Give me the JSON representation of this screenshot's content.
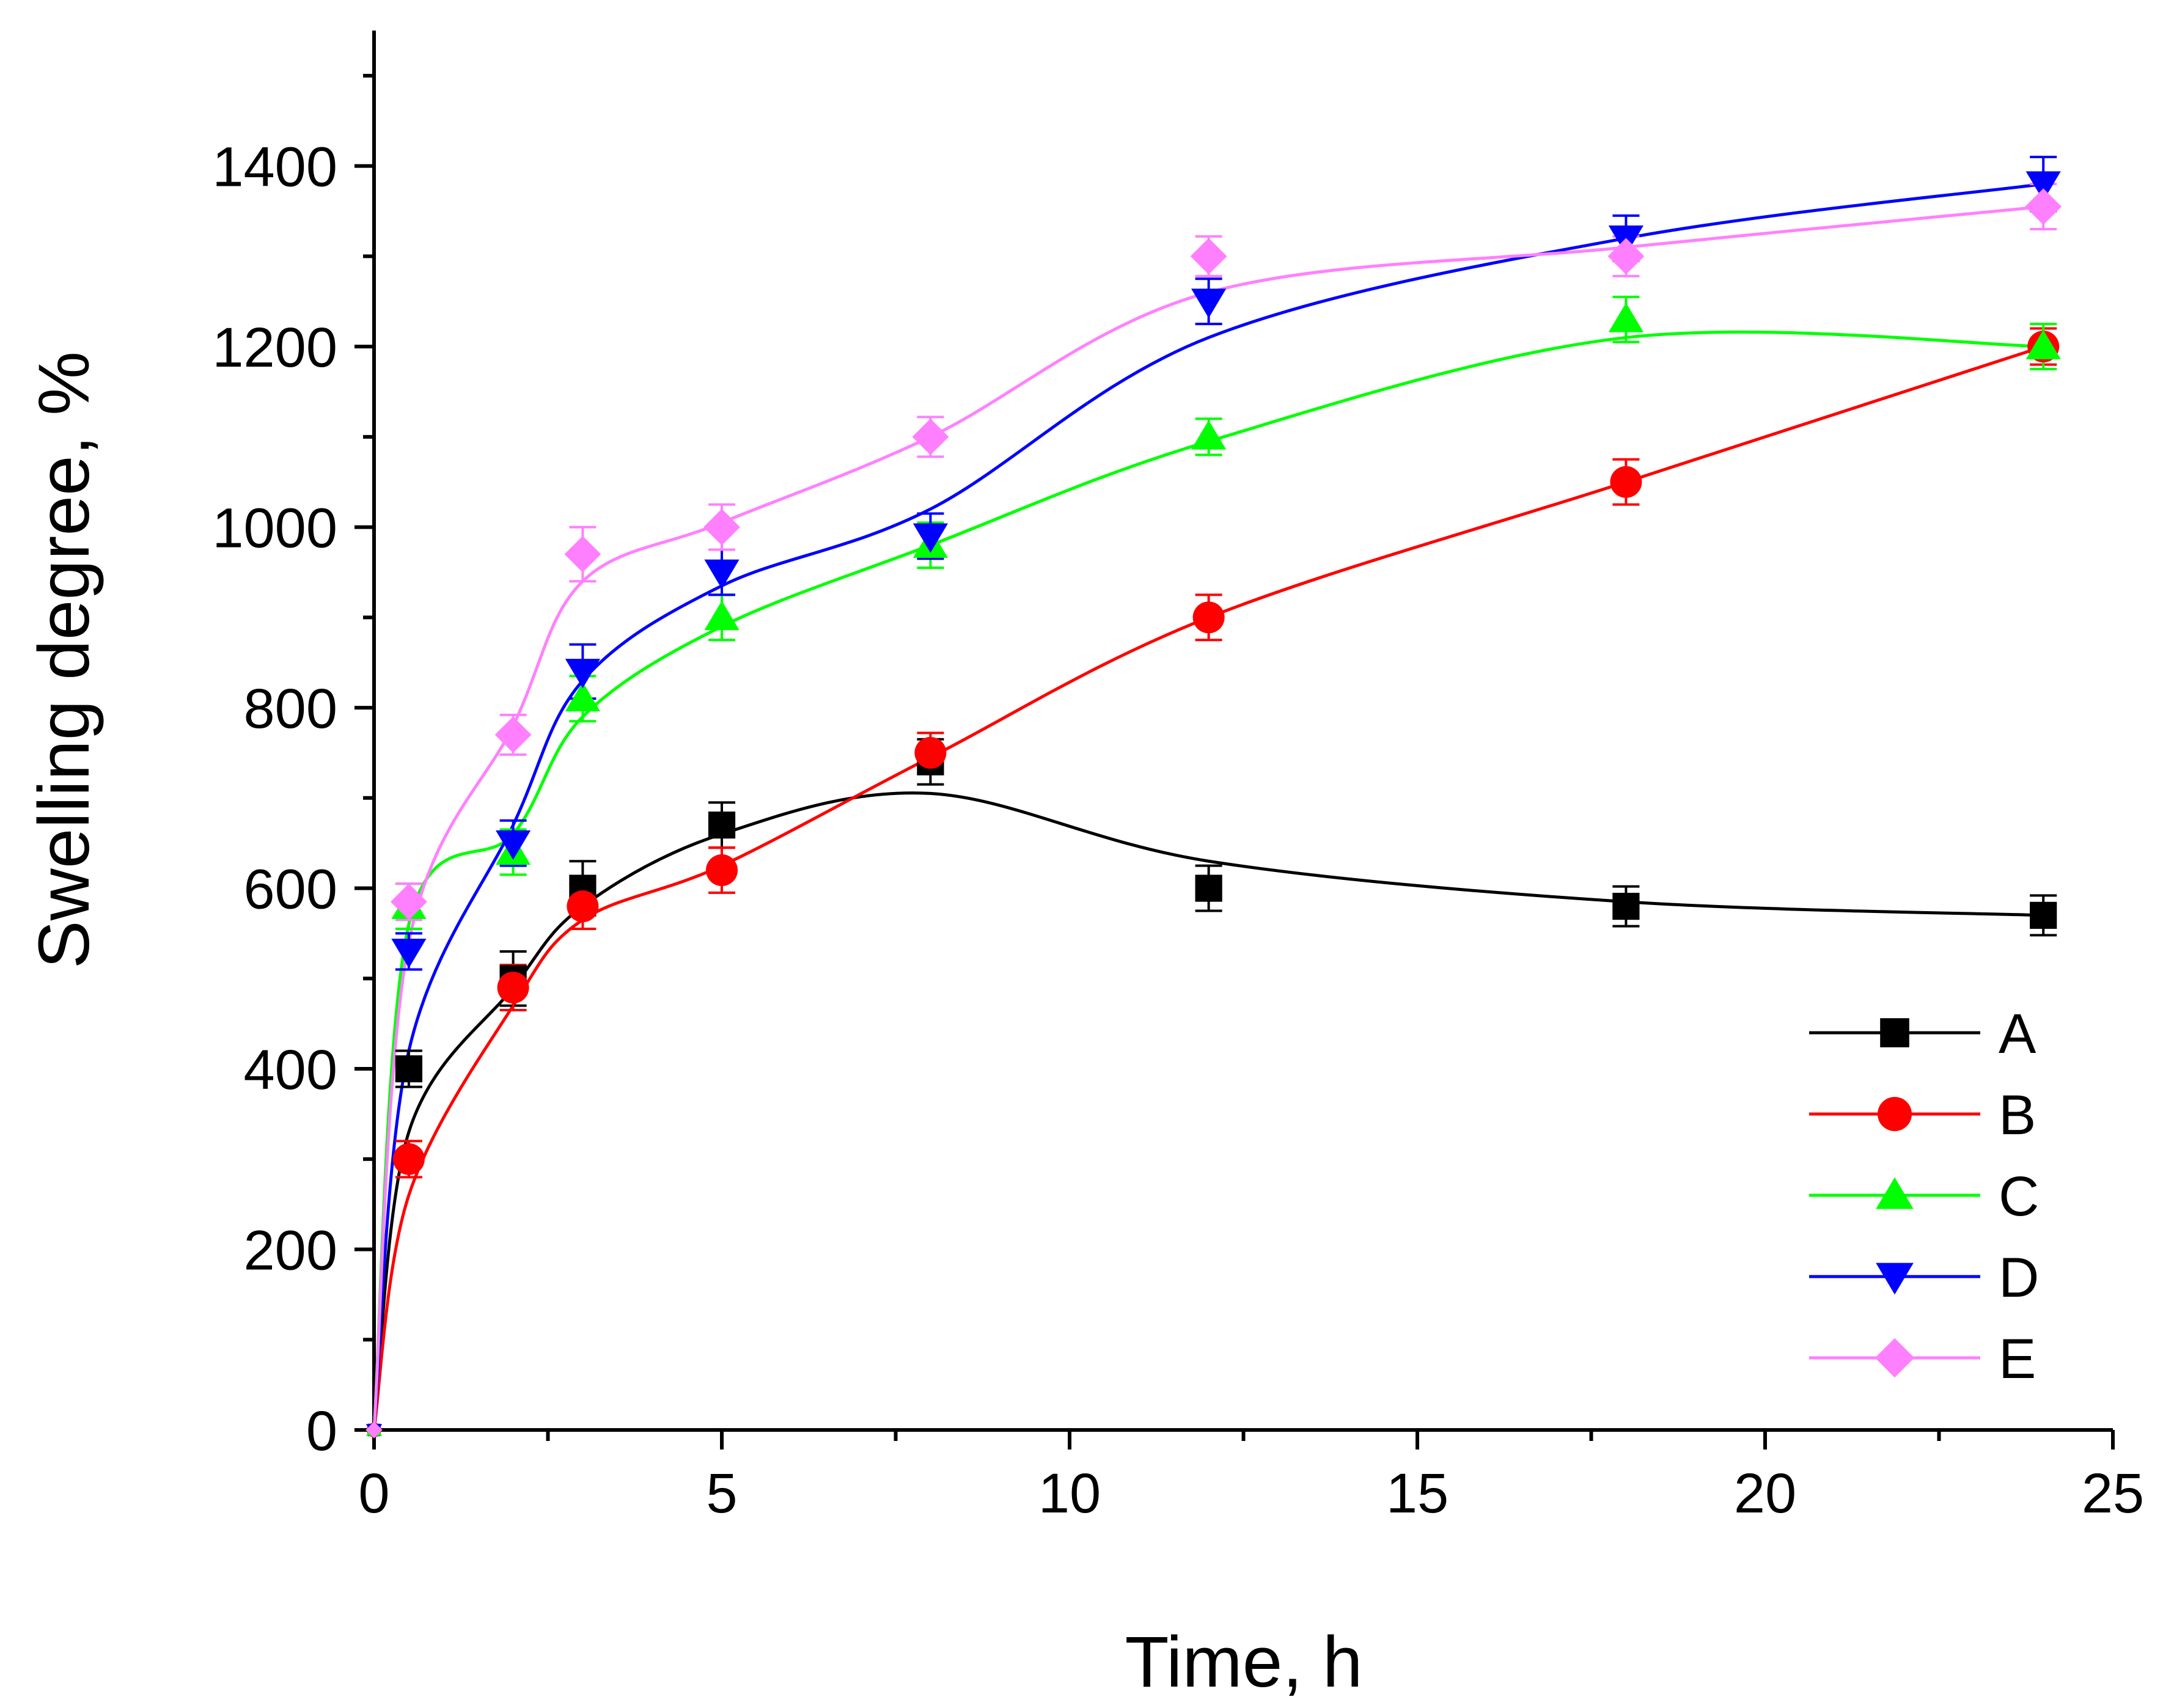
{
  "chart_data": {
    "type": "line",
    "title": "",
    "xlabel": "Time, h",
    "ylabel": "Swelling degree, %",
    "xlim": [
      0,
      25
    ],
    "ylim": [
      0,
      1550
    ],
    "xticks": [
      0,
      5,
      10,
      15,
      20,
      25
    ],
    "yticks": [
      0,
      200,
      400,
      600,
      800,
      1000,
      1200,
      1400
    ],
    "grid": false,
    "legend_position": "bottom-right",
    "x": [
      0,
      0.5,
      2,
      3,
      5,
      8,
      12,
      18,
      24
    ],
    "series": [
      {
        "name": "A",
        "color": "#000000",
        "marker": "square",
        "values": [
          0,
          400,
          500,
          600,
          670,
          740,
          600,
          580,
          570
        ],
        "errors": [
          0,
          20,
          30,
          30,
          25,
          25,
          25,
          22,
          22
        ],
        "curve": [
          0,
          330,
          490,
          580,
          660,
          705,
          630,
          585,
          570
        ]
      },
      {
        "name": "B",
        "color": "#ff0000",
        "marker": "circle",
        "values": [
          0,
          300,
          490,
          580,
          620,
          750,
          900,
          1050,
          1200
        ],
        "errors": [
          0,
          20,
          25,
          25,
          25,
          22,
          25,
          25,
          20
        ],
        "curve": [
          0,
          260,
          470,
          565,
          625,
          745,
          900,
          1050,
          1200
        ]
      },
      {
        "name": "C",
        "color": "#00ff00",
        "marker": "triangle-up",
        "values": [
          0,
          580,
          640,
          810,
          900,
          980,
          1100,
          1230,
          1200
        ],
        "errors": [
          0,
          25,
          25,
          25,
          25,
          25,
          20,
          25,
          25
        ],
        "curve": [
          0,
          560,
          660,
          790,
          890,
          980,
          1095,
          1210,
          1200
        ]
      },
      {
        "name": "D",
        "color": "#0000ff",
        "marker": "triangle-down",
        "values": [
          0,
          530,
          650,
          840,
          950,
          990,
          1250,
          1320,
          1380
        ],
        "errors": [
          0,
          20,
          25,
          30,
          25,
          25,
          25,
          25,
          30
        ],
        "curve": [
          0,
          420,
          670,
          830,
          935,
          1020,
          1210,
          1320,
          1380
        ]
      },
      {
        "name": "E",
        "color": "#ff80ff",
        "marker": "diamond",
        "values": [
          0,
          585,
          770,
          970,
          1000,
          1100,
          1300,
          1300,
          1355
        ],
        "errors": [
          0,
          20,
          22,
          30,
          25,
          22,
          22,
          22,
          25
        ],
        "curve": [
          0,
          540,
          780,
          940,
          1005,
          1100,
          1260,
          1310,
          1355
        ]
      }
    ]
  }
}
